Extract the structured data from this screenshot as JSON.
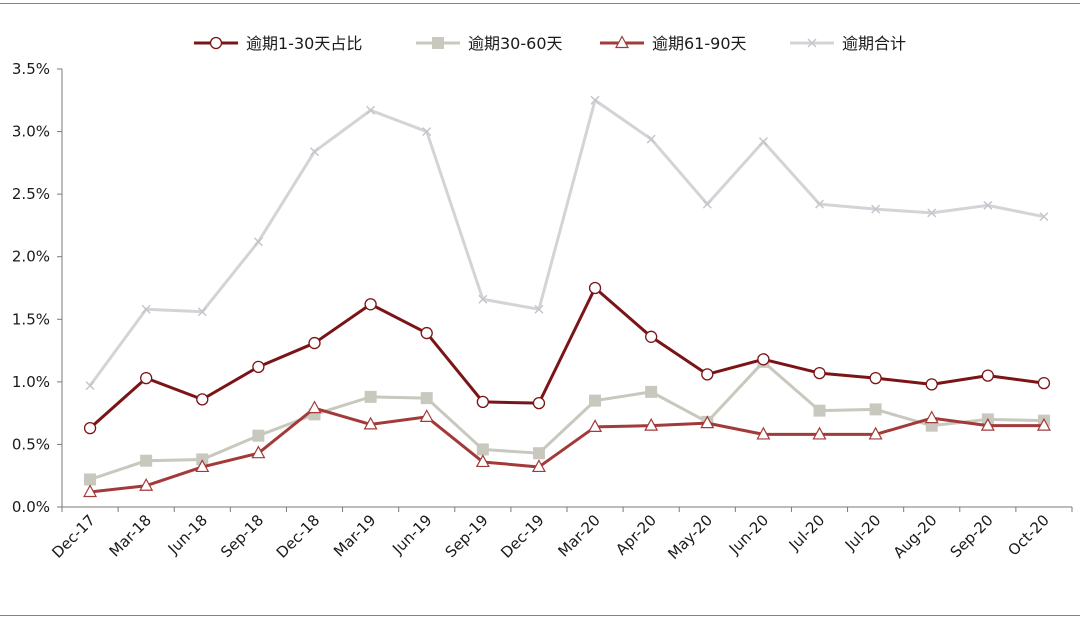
{
  "chart_data": {
    "type": "line",
    "title": "",
    "xlabel": "",
    "ylabel": "",
    "ylim": [
      0,
      3.5
    ],
    "yticks": [
      "0.0%",
      "0.5%",
      "1.0%",
      "1.5%",
      "2.0%",
      "2.5%",
      "3.0%",
      "3.5%"
    ],
    "grid": false,
    "legend_position": "top-center",
    "categories": [
      "Dec-17",
      "Mar-18",
      "Jun-18",
      "Sep-18",
      "Dec-18",
      "Mar-19",
      "Jun-19",
      "Sep-19",
      "Dec-19",
      "Mar-20",
      "Apr-20",
      "May-20",
      "Jun-20",
      "Jul-20",
      "Jul-20",
      "Aug-20",
      "Sep-20",
      "Oct-20"
    ],
    "series": [
      {
        "name": "逾期1-30天占比",
        "marker": "circle",
        "color": "#7b1416",
        "values": [
          0.63,
          1.03,
          0.86,
          1.12,
          1.31,
          1.62,
          1.39,
          0.84,
          0.83,
          1.75,
          1.36,
          1.06,
          1.18,
          1.07,
          1.03,
          0.98,
          1.05,
          0.99
        ]
      },
      {
        "name": "逾期30-60天",
        "marker": "square",
        "color": "#c8c8be",
        "values": [
          0.22,
          0.37,
          0.38,
          0.57,
          0.74,
          0.88,
          0.87,
          0.46,
          0.43,
          0.85,
          0.92,
          0.68,
          1.16,
          0.77,
          0.78,
          0.65,
          0.7,
          0.69
        ]
      },
      {
        "name": "逾期61-90天",
        "marker": "triangle",
        "color": "#a33a3a",
        "values": [
          0.12,
          0.17,
          0.32,
          0.43,
          0.79,
          0.66,
          0.72,
          0.36,
          0.32,
          0.64,
          0.65,
          0.67,
          0.58,
          0.58,
          0.58,
          0.71,
          0.65,
          0.65
        ]
      },
      {
        "name": "逾期合计",
        "marker": "x",
        "color": "#d4d4d8",
        "values": [
          0.97,
          1.58,
          1.56,
          2.12,
          2.84,
          3.17,
          3.0,
          1.66,
          1.58,
          3.25,
          2.94,
          2.42,
          2.92,
          2.42,
          2.38,
          2.35,
          2.41,
          2.32
        ]
      }
    ]
  }
}
